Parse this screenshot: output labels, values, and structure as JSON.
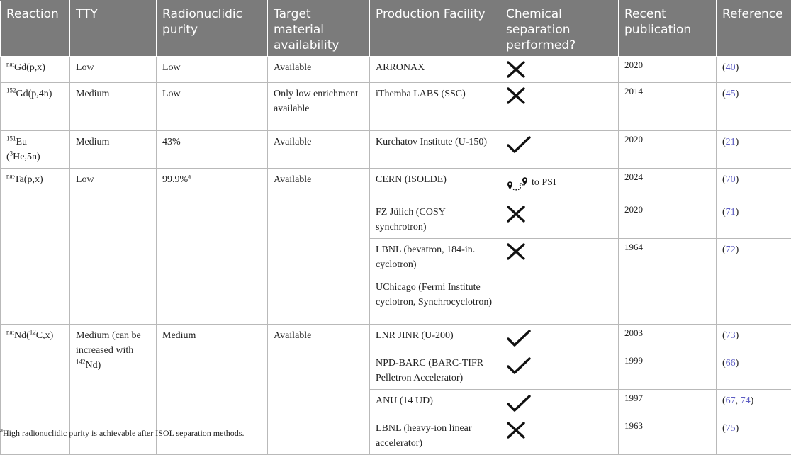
{
  "headers": [
    "Reaction",
    "TTY",
    "Radionuclidic purity",
    "Target material availability",
    "Production Facility",
    "Chemical separation performed?",
    "Recent publication",
    "Reference"
  ],
  "rows": [
    {
      "reaction_sup": "nat",
      "reaction_rest": "Gd(p,x)",
      "tty": "Low",
      "purity": "Low",
      "availability": "Available",
      "facility": "ARRONAX",
      "separation": "cross-icon",
      "year": "2020",
      "ref": "40"
    },
    {
      "reaction_sup": "152",
      "reaction_rest": "Gd(p,4n)",
      "tty": "Medium",
      "purity": "Low",
      "availability": "Only low enrichment available",
      "facility": "iThemba LABS (SSC)",
      "separation": "cross-icon",
      "year": "2014",
      "ref": "45"
    },
    {
      "reaction_sup": "151",
      "reaction_rest": "Eu",
      "reaction_line2_sup": "3",
      "reaction_line2_rest": "He,5n)",
      "tty": "Medium",
      "purity": "43%",
      "availability": "Available",
      "facility": "Kurchatov Institute (U-150)",
      "separation": "check-icon",
      "year": "2020",
      "ref": "21"
    }
  ],
  "ta_group": {
    "reaction_sup": "nat",
    "reaction_rest": "Ta(p,x)",
    "tty": "Low",
    "purity": "99.9%",
    "purity_sup": "a",
    "availability": "Available",
    "facilities": [
      {
        "facility": "CERN (ISOLDE)",
        "separation": "route-icon",
        "separation_text": "to PSI",
        "year": "2024",
        "ref": "70"
      },
      {
        "facility": "FZ Jülich (COSY synchrotron)",
        "separation": "cross-icon",
        "year": "2020",
        "ref": "71"
      },
      {
        "facility": "LBNL (bevatron, 184-in. cyclotron)",
        "separation": "cross-icon",
        "year": "1964",
        "ref": "72"
      },
      {
        "facility": "UChicago (Fermi Institute cyclotron, Synchrocyclotron)"
      }
    ]
  },
  "nd_group": {
    "reaction_sup": "nat",
    "reaction_mid": "Nd(",
    "reaction_sup2": "12",
    "reaction_rest": "C,x)",
    "tty_line1": "Medium (can be increased with",
    "tty_sup": "142",
    "tty_rest": "Nd)",
    "purity": "Medium",
    "availability": "Available",
    "facilities": [
      {
        "facility": "LNR JINR (U-200)",
        "separation": "check-icon",
        "year": "2003",
        "ref": "73"
      },
      {
        "facility": "NPD-BARC (BARC-TIFR Pelletron Accelerator)",
        "separation": "check-icon",
        "year": "1999",
        "ref": "66"
      },
      {
        "facility": "ANU (14 UD)",
        "separation": "check-icon",
        "year": "1997",
        "ref": "67",
        "ref2": "74"
      },
      {
        "facility": "LBNL (heavy-ion linear accelerator)",
        "separation": "cross-icon",
        "year": "1963",
        "ref": "75"
      }
    ]
  },
  "footnote_sup": "a",
  "footnote": "High radionuclidic purity is achievable after ISOL separation methods."
}
